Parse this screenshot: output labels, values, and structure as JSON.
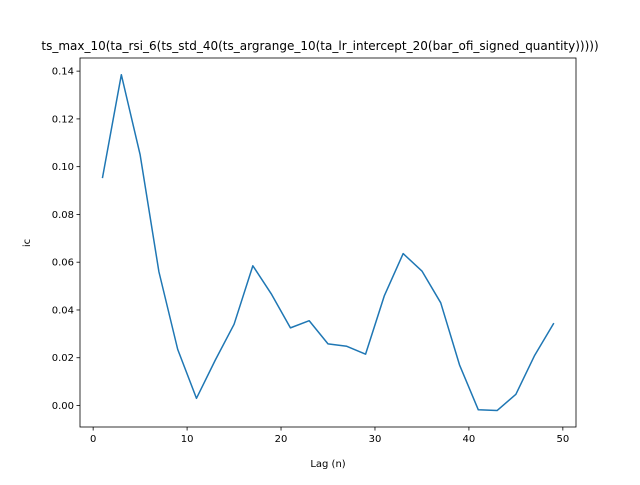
{
  "chart_data": {
    "type": "line",
    "title": "ts_max_10(ta_rsi_6(ts_std_40(ts_argrange_10(ta_lr_intercept_20(bar_ofi_signed_quantity)))))",
    "xlabel": "Lag (n)",
    "ylabel": "ic",
    "xlim": [
      -1.4,
      51.4
    ],
    "ylim": [
      -0.009,
      0.1455
    ],
    "x_ticks": [
      0,
      10,
      20,
      30,
      40,
      50
    ],
    "y_ticks": [
      0.0,
      0.02,
      0.04,
      0.06,
      0.08,
      0.1,
      0.12,
      0.14
    ],
    "y_tick_labels": [
      "0.00",
      "0.02",
      "0.04",
      "0.06",
      "0.08",
      "0.10",
      "0.12",
      "0.14"
    ],
    "grid": false,
    "legend": "none",
    "series": [
      {
        "color": "#1f77b4",
        "x": [
          1,
          3,
          5,
          7,
          9,
          11,
          13,
          15,
          17,
          19,
          21,
          23,
          25,
          27,
          29,
          31,
          33,
          35,
          37,
          39,
          41,
          43,
          45,
          47,
          49
        ],
        "y": [
          0.0955,
          0.1385,
          0.105,
          0.056,
          0.0235,
          0.003,
          0.019,
          0.034,
          0.0585,
          0.0465,
          0.0325,
          0.0355,
          0.0258,
          0.0248,
          0.0215,
          0.046,
          0.0636,
          0.0563,
          0.043,
          0.017,
          -0.0018,
          -0.0021,
          0.0047,
          0.021,
          0.0342
        ]
      }
    ]
  }
}
